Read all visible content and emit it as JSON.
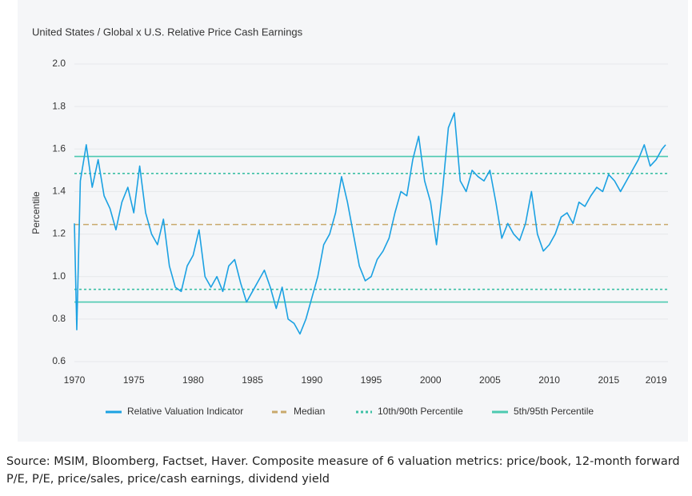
{
  "chart_data": {
    "type": "line",
    "title": "United States / Global x U.S. Relative Price Cash Earnings",
    "y_label": "Percentile",
    "x": [
      1970,
      1970.2,
      1970.5,
      1971,
      1971.5,
      1972,
      1972.5,
      1973,
      1973.5,
      1974,
      1974.5,
      1975,
      1975.5,
      1976,
      1976.5,
      1977,
      1977.5,
      1978,
      1978.5,
      1979,
      1979.5,
      1980,
      1980.5,
      1981,
      1981.5,
      1982,
      1982.5,
      1983,
      1983.5,
      1984,
      1984.5,
      1985,
      1985.5,
      1986,
      1986.5,
      1987,
      1987.5,
      1988,
      1988.5,
      1989,
      1989.5,
      1990,
      1990.5,
      1991,
      1991.5,
      1992,
      1992.5,
      1993,
      1993.5,
      1994,
      1994.5,
      1995,
      1995.5,
      1996,
      1996.5,
      1997,
      1997.5,
      1998,
      1998.5,
      1999,
      1999.5,
      2000,
      2000.5,
      2001,
      2001.5,
      2002,
      2002.5,
      2003,
      2003.5,
      2004,
      2004.5,
      2005,
      2005.5,
      2006,
      2006.5,
      2007,
      2007.5,
      2008,
      2008.5,
      2009,
      2009.5,
      2010,
      2010.5,
      2011,
      2011.5,
      2012,
      2012.5,
      2013,
      2013.5,
      2014,
      2014.5,
      2015,
      2015.5,
      2016,
      2016.5,
      2017,
      2017.5,
      2018,
      2018.5,
      2019,
      2019.5,
      2019.8
    ],
    "series": [
      {
        "name": "Relative Valuation Indicator",
        "color": "#1ba1e2",
        "values": [
          1.25,
          0.75,
          1.45,
          1.62,
          1.42,
          1.55,
          1.38,
          1.32,
          1.22,
          1.35,
          1.42,
          1.3,
          1.52,
          1.3,
          1.2,
          1.15,
          1.27,
          1.05,
          0.95,
          0.93,
          1.05,
          1.1,
          1.22,
          1.0,
          0.95,
          1.0,
          0.93,
          1.05,
          1.08,
          0.97,
          0.88,
          0.93,
          0.98,
          1.03,
          0.95,
          0.85,
          0.95,
          0.8,
          0.78,
          0.73,
          0.8,
          0.9,
          1.0,
          1.15,
          1.2,
          1.3,
          1.47,
          1.35,
          1.2,
          1.05,
          0.98,
          1.0,
          1.08,
          1.12,
          1.18,
          1.3,
          1.4,
          1.38,
          1.55,
          1.66,
          1.45,
          1.35,
          1.15,
          1.4,
          1.7,
          1.77,
          1.45,
          1.4,
          1.5,
          1.47,
          1.45,
          1.5,
          1.35,
          1.18,
          1.25,
          1.2,
          1.17,
          1.25,
          1.4,
          1.2,
          1.12,
          1.15,
          1.2,
          1.28,
          1.3,
          1.25,
          1.35,
          1.33,
          1.38,
          1.42,
          1.4,
          1.48,
          1.45,
          1.4,
          1.45,
          1.5,
          1.55,
          1.62,
          1.52,
          1.55,
          1.6,
          1.62
        ]
      }
    ],
    "reference_lines": [
      {
        "name": "Median",
        "color": "#c9a96b",
        "style": "dashed",
        "values": [
          1.245
        ]
      },
      {
        "name": "10th/90th Percentile",
        "color": "#3cc0a5",
        "style": "dotted",
        "values": [
          0.94,
          1.485
        ]
      },
      {
        "name": "5th/95th Percentile",
        "color": "#4cc9b0",
        "style": "solid",
        "values": [
          0.88,
          1.565
        ]
      }
    ],
    "xlim": [
      1970,
      2020
    ],
    "xticks": [
      1970,
      1975,
      1980,
      1985,
      1990,
      1995,
      2000,
      2005,
      2010,
      2015,
      2019
    ],
    "ylim": [
      0.6,
      2.0
    ],
    "yticks": [
      0.6,
      0.8,
      {
        "value": 1.0,
        "label": "1.0"
      },
      1.2,
      1.4,
      1.6,
      1.8,
      {
        "value": 2.0,
        "label": "2.0"
      }
    ],
    "grid": true,
    "legend": "bottom"
  },
  "source": "Source: MSIM, Bloomberg, Factset, Haver. Composite measure of 6 valuation metrics: price/book, 12-month forward P/E, P/E, price/sales, price/cash earnings, dividend yield"
}
